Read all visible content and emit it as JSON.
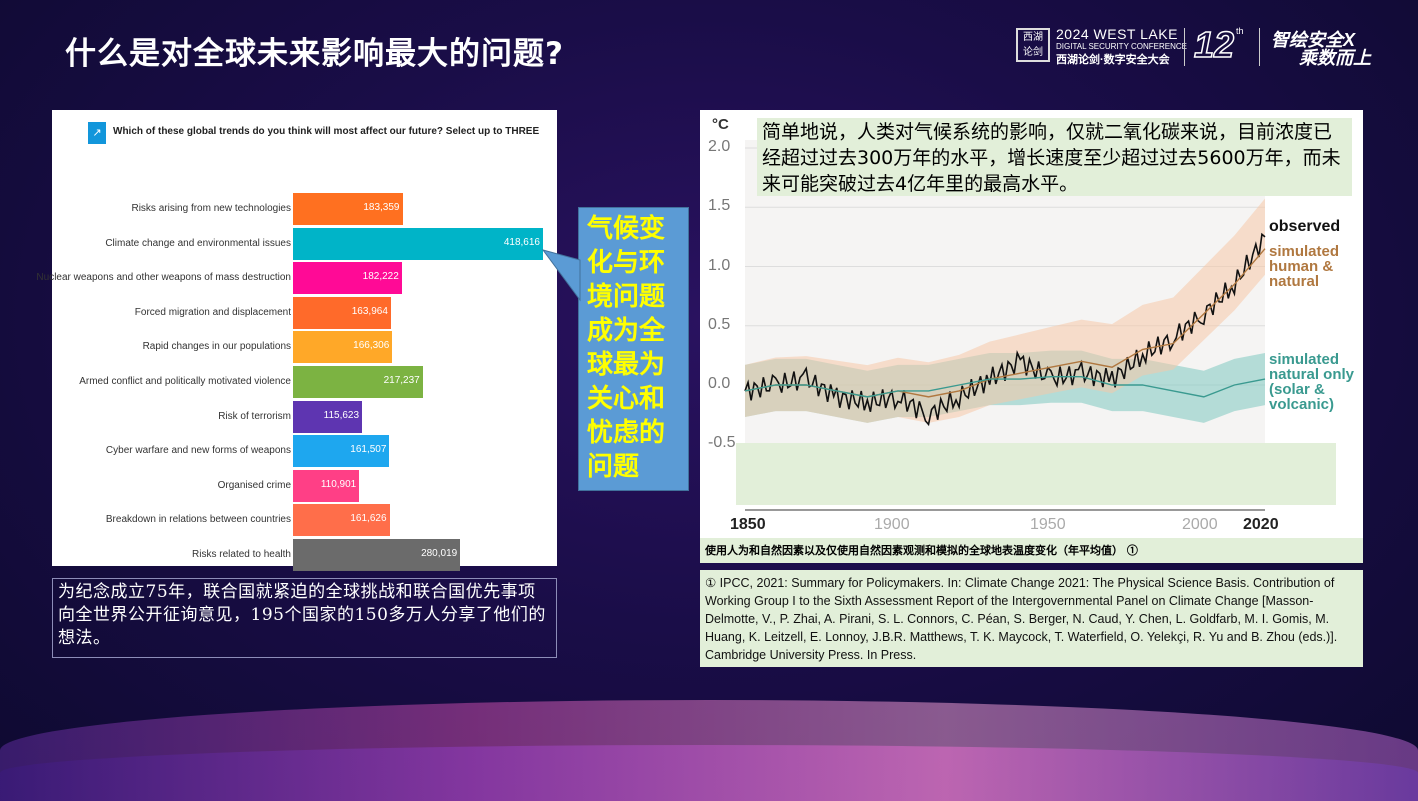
{
  "title": "什么是对全球未来影响最大的问题?",
  "logo": {
    "line1": "2024 WEST LAKE",
    "line2": "DIGITAL SECURITY CONFERENCE",
    "line3": "西湖论剑·数字安全大会",
    "edition": "12",
    "edition_suffix": "th",
    "slogan1": "智绘安全X",
    "slogan2": "乘数而上",
    "seal": "西湖论剑"
  },
  "left_note": "为纪念成立75年，联合国就紧迫的全球挑战和联合国优先事项向全世界公开征询意见，195个国家的150多万人分享了他们的想法。",
  "callout": "气候变化与环境问题成为全球最为关心和忧虑的问题",
  "right_intro": "简单地说，人类对气候系统的影响，仅就二氧化碳来说，目前浓度已经超过过去300万年的水平，增长速度至少超过过去5600万年，而未来可能突破过去4亿年里的最高水平。",
  "caption": "使用人为和自然因素以及仅使用自然因素观测和模拟的全球地表温度变化（年平均值） ①",
  "reference": "① IPCC, 2021: Summary for Policymakers. In: Climate Change 2021: The Physical Science Basis. Contribution of Working Group I to the Sixth Assessment Report of the Intergovernmental Panel on Climate Change [Masson-Delmotte, V., P. Zhai, A. Pirani, S. L. Connors, C. Péan, S. Berger, N. Caud, Y. Chen, L. Goldfarb, M. I. Gomis, M. Huang, K. Leitzell, E. Lonnoy, J.B.R. Matthews, T. K. Maycock, T. Waterfield, O. Yelekçi, R. Yu and B. Zhou (eds.)]. Cambridge University Press. In Press.",
  "chart_data": [
    {
      "type": "bar",
      "orientation": "horizontal",
      "title": "Which of these global trends do you think will most affect our future? Select up to THREE",
      "title_icon": "arrow-up-right-icon",
      "categories": [
        "Risks arising from new technologies",
        "Climate change and environmental issues",
        "Nuclear weapons and other weapons of mass destruction",
        "Forced migration and displacement",
        "Rapid changes in our populations",
        "Armed conflict and politically motivated violence",
        "Risk of terrorism",
        "Cyber warfare and new forms of weapons",
        "Organised crime",
        "Breakdown in relations between countries",
        "Risks related to health"
      ],
      "values": [
        183359,
        418616,
        182222,
        163964,
        166306,
        217237,
        115623,
        161507,
        110901,
        161626,
        280019
      ],
      "labels": [
        "183,359",
        "418,616",
        "182,222",
        "163,964",
        "166,306",
        "217,237",
        "115,623",
        "161,507",
        "110,901",
        "161,626",
        "280,019"
      ],
      "colors": [
        "#ff7020",
        "#00b4c8",
        "#ff0a96",
        "#ff6a2a",
        "#ffa828",
        "#7cb342",
        "#5e35b1",
        "#1ea7ef",
        "#ff3f86",
        "#ff6e4a",
        "#6b6b6b"
      ]
    },
    {
      "type": "line",
      "ylabel": "°C",
      "ylim": [
        -0.5,
        2.0
      ],
      "xlim": [
        1850,
        2020
      ],
      "yticks": [
        "2.0",
        "1.5",
        "1.0",
        "0.5",
        "0.0",
        "-0.5"
      ],
      "xticks": [
        "1850",
        "1900",
        "1950",
        "2000",
        "2020"
      ],
      "x": [
        1850,
        1860,
        1870,
        1880,
        1890,
        1900,
        1910,
        1920,
        1930,
        1940,
        1950,
        1960,
        1970,
        1980,
        1990,
        2000,
        2010,
        2020
      ],
      "series": [
        {
          "name": "observed",
          "color": "#111111",
          "values": [
            -0.05,
            0.0,
            0.05,
            -0.1,
            -0.15,
            -0.1,
            -0.25,
            -0.1,
            0.05,
            0.2,
            0.05,
            0.1,
            0.05,
            0.25,
            0.4,
            0.6,
            0.85,
            1.25
          ]
        },
        {
          "name": "simulated human & natural",
          "color": "#b07840",
          "band_color": "#f5c8a8",
          "values": [
            -0.05,
            0.0,
            0.0,
            -0.05,
            -0.1,
            -0.05,
            -0.1,
            -0.05,
            0.05,
            0.1,
            0.15,
            0.2,
            0.15,
            0.3,
            0.35,
            0.6,
            0.85,
            1.15
          ]
        },
        {
          "name": "simulated natural only (solar & volcanic)",
          "color": "#3a9a90",
          "band_color": "#7ec8c0",
          "values": [
            -0.05,
            0.0,
            0.0,
            -0.05,
            -0.1,
            -0.05,
            -0.05,
            0.0,
            0.05,
            0.05,
            0.07,
            0.07,
            0.0,
            0.0,
            -0.05,
            -0.1,
            0.0,
            0.05
          ]
        }
      ]
    }
  ]
}
